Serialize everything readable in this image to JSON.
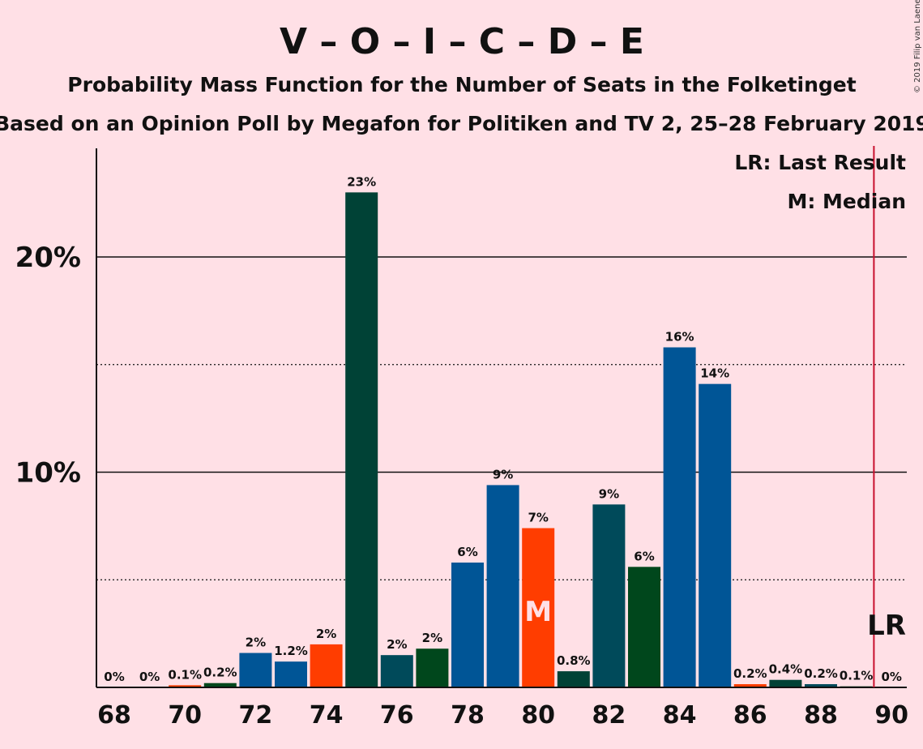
{
  "title": "V – O – I – C – D – E",
  "subtitle1": "Probability Mass Function for the Number of Seats in the Folketinget",
  "subtitle2": "Based on an Opinion Poll by Megafon for Politiken and TV 2, 25–28 February 2019",
  "copyright": "© 2019 Filip van Laenen",
  "legend": {
    "lr": "LR: Last Result",
    "median": "M: Median"
  },
  "markers": {
    "median_label": "M",
    "lr_label": "LR"
  },
  "colors": {
    "background": "#ffe0e6",
    "lr_line": "#c8102e",
    "median_bar": "#ff3d00"
  },
  "chart_data": {
    "type": "bar",
    "x": [
      68,
      69,
      70,
      71,
      72,
      73,
      74,
      75,
      76,
      77,
      78,
      79,
      80,
      81,
      82,
      83,
      84,
      85,
      86,
      87,
      88,
      89,
      90
    ],
    "values": [
      0,
      0,
      0.1,
      0.2,
      1.6,
      1.2,
      2.0,
      23.0,
      1.5,
      1.8,
      5.8,
      9.4,
      7.4,
      0.75,
      8.5,
      5.6,
      15.8,
      14.1,
      0.15,
      0.35,
      0.15,
      0.05,
      0
    ],
    "data_labels": [
      "0%",
      "0%",
      "0.1%",
      "0.2%",
      "2%",
      "1.2%",
      "2%",
      "23%",
      "2%",
      "2%",
      "6%",
      "9%",
      "7%",
      "0.8%",
      "9%",
      "6%",
      "16%",
      "14%",
      "0.2%",
      "0.4%",
      "0.2%",
      "0.1%",
      "0%"
    ],
    "bar_colors": [
      "#00471c",
      "#005596",
      "#ff3d00",
      "#00471c",
      "#005596",
      "#005596",
      "#ff3d00",
      "#004236",
      "#004a5a",
      "#00471c",
      "#005596",
      "#005596",
      "#ff3d00",
      "#004236",
      "#004a5a",
      "#00471c",
      "#005596",
      "#005596",
      "#ff3d00",
      "#004236",
      "#004a5a",
      "#00471c",
      "#005596"
    ],
    "xticks": [
      "68",
      "70",
      "72",
      "74",
      "76",
      "78",
      "80",
      "82",
      "84",
      "86",
      "88",
      "90"
    ],
    "ytick_labels": [
      "10%",
      "20%"
    ],
    "ytick_values": [
      10,
      20
    ],
    "minor_gridlines": [
      5,
      15
    ],
    "ylim": [
      0,
      25
    ],
    "median_seats": 80,
    "last_result_seats": 89.5
  }
}
